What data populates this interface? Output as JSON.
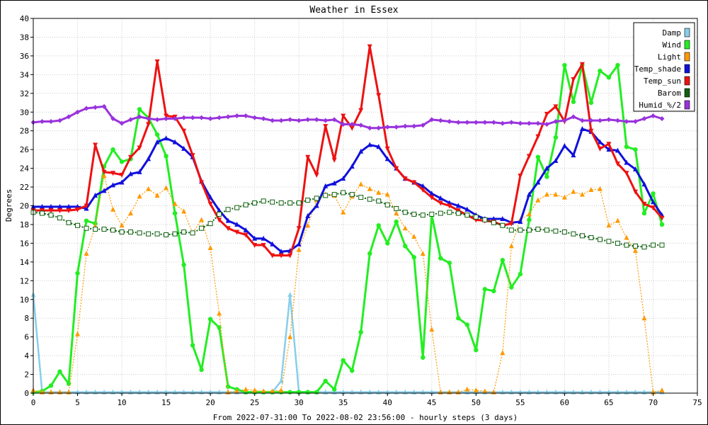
{
  "chart_data": {
    "type": "line",
    "title": "Weather in Essex",
    "xlabel": "From 2022-07-31:00 To 2022-08-02 23:56:00 - hourly steps (3 days)",
    "ylabel": "Degrees",
    "xlim": [
      0,
      75
    ],
    "ylim": [
      0,
      40
    ],
    "x_ticks": [
      0,
      5,
      10,
      15,
      20,
      25,
      30,
      35,
      40,
      45,
      50,
      55,
      60,
      65,
      70,
      75
    ],
    "y_ticks": [
      0,
      2,
      4,
      6,
      8,
      10,
      12,
      14,
      16,
      18,
      20,
      22,
      24,
      26,
      28,
      30,
      32,
      34,
      36,
      38,
      40
    ],
    "grid": true,
    "legend_position": "top-right",
    "series": [
      {
        "name": "Damp",
        "color": "#87ceeb",
        "marker": "triangle",
        "values": [
          10.5,
          0.1,
          0.1,
          0.1,
          0.1,
          0.1,
          0.1,
          0.1,
          0.1,
          0.1,
          0.1,
          0.1,
          0.1,
          0.1,
          0.1,
          0.1,
          0.1,
          0.1,
          0.1,
          0.1,
          0.1,
          0.1,
          0.1,
          0.1,
          0.1,
          0.1,
          0.1,
          0.1,
          1.3,
          10.5,
          0.1,
          0.1,
          0.1,
          0.1,
          0.1,
          0.1,
          0.1,
          0.1,
          0.1,
          0.1,
          0.1,
          0.1,
          0.1,
          0.1,
          0.1,
          0.1,
          0.1,
          0.1,
          0.1,
          0.1,
          0.1,
          0.1,
          0.1,
          0.1,
          0.1,
          0.1,
          0.1,
          0.1,
          0.1,
          0.1,
          0.1,
          0.1,
          0.1,
          0.1,
          0.1,
          0.1,
          0.1,
          0.1,
          0.1,
          0.1,
          0.1,
          0.1
        ]
      },
      {
        "name": "Wind",
        "color": "#22ee22",
        "marker": "circle",
        "values": [
          0.1,
          0.2,
          0.8,
          2.3,
          1.0,
          12.8,
          18.4,
          18.1,
          24.2,
          26.0,
          24.7,
          25.0,
          30.3,
          29.4,
          27.6,
          25.3,
          19.2,
          13.7,
          5.1,
          2.5,
          7.9,
          7.0,
          0.7,
          0.4,
          0.1,
          0.1,
          0.1,
          0.1,
          0.1,
          0.1,
          0.1,
          0.1,
          0.1,
          1.3,
          0.4,
          3.5,
          2.4,
          6.5,
          14.9,
          17.9,
          16.0,
          18.3,
          15.7,
          14.5,
          3.8,
          19.0,
          14.4,
          13.9,
          8.0,
          7.3,
          4.6,
          11.1,
          10.9,
          14.2,
          11.3,
          12.7,
          18.5,
          25.2,
          23.1,
          27.3,
          35.0,
          31.1,
          35.0,
          31.0,
          34.4,
          33.7,
          35.0,
          26.3,
          26.0,
          19.2,
          21.3,
          18.0
        ]
      },
      {
        "name": "Light",
        "color": "#ff9900",
        "marker": "triangle",
        "values": [
          0.3,
          0.1,
          0.1,
          0.1,
          0.1,
          6.3,
          14.9,
          17.8,
          23.2,
          19.6,
          17.9,
          19.2,
          21.0,
          21.8,
          21.1,
          21.9,
          20.2,
          19.4,
          17.1,
          18.5,
          15.5,
          8.5,
          0.1,
          0.2,
          0.4,
          0.3,
          0.2,
          0.2,
          0.3,
          6.0,
          15.3,
          17.9,
          20.6,
          21.2,
          21.1,
          19.3,
          21.0,
          22.3,
          21.8,
          21.4,
          21.2,
          19.2,
          17.6,
          16.7,
          14.9,
          6.8,
          0.1,
          0.1,
          0.1,
          0.4,
          0.3,
          0.2,
          0.1,
          4.3,
          15.7,
          18.5,
          19.1,
          20.6,
          21.2,
          21.2,
          20.9,
          21.5,
          21.2,
          21.7,
          21.8,
          17.9,
          18.4,
          16.6,
          15.2,
          8.0,
          0.1,
          0.3
        ]
      },
      {
        "name": "Temp_shade",
        "color": "#1010dd",
        "marker": "triangle",
        "values": [
          19.9,
          19.9,
          19.9,
          19.9,
          19.9,
          19.9,
          19.7,
          21.1,
          21.6,
          22.2,
          22.5,
          23.4,
          23.6,
          25.0,
          26.8,
          27.2,
          26.8,
          26.1,
          25.2,
          22.6,
          20.9,
          19.5,
          18.4,
          18.0,
          17.4,
          16.5,
          16.5,
          15.9,
          15.1,
          15.2,
          15.9,
          18.9,
          20.0,
          22.1,
          22.4,
          22.9,
          24.2,
          25.8,
          26.5,
          26.3,
          25.0,
          24.0,
          22.9,
          22.5,
          22.1,
          21.3,
          20.8,
          20.3,
          20.0,
          19.6,
          19.0,
          18.6,
          18.6,
          18.6,
          18.2,
          18.3,
          21.2,
          22.5,
          24.0,
          24.8,
          26.4,
          25.4,
          28.2,
          27.9,
          26.8,
          26.0,
          25.9,
          24.6,
          23.9,
          22.3,
          20.4,
          19.0
        ]
      },
      {
        "name": "Temp_sun",
        "color": "#ee1111",
        "marker": "triangle-down",
        "values": [
          19.5,
          19.5,
          19.5,
          19.5,
          19.5,
          19.6,
          20.0,
          26.5,
          23.6,
          23.5,
          23.3,
          25.2,
          26.2,
          28.7,
          35.4,
          29.6,
          29.5,
          28.0,
          25.4,
          22.5,
          20.2,
          18.5,
          17.6,
          17.2,
          16.9,
          15.8,
          15.8,
          14.7,
          14.7,
          14.7,
          17.6,
          25.2,
          23.3,
          28.5,
          24.9,
          29.6,
          28.3,
          30.2,
          37.0,
          31.8,
          26.1,
          24.0,
          22.9,
          22.5,
          21.7,
          20.9,
          20.3,
          20.0,
          19.5,
          19.0,
          18.5,
          18.4,
          18.3,
          17.9,
          18.1,
          23.2,
          25.3,
          27.4,
          29.8,
          30.6,
          29.0,
          33.5,
          35.1,
          28.0,
          26.1,
          26.6,
          24.5,
          23.5,
          21.5,
          20.2,
          19.8,
          18.7
        ]
      },
      {
        "name": "Barom",
        "color": "#0f600f",
        "marker": "square",
        "values": [
          19.3,
          19.2,
          19.0,
          18.7,
          18.2,
          17.9,
          17.6,
          17.5,
          17.5,
          17.4,
          17.2,
          17.2,
          17.1,
          17.0,
          17.0,
          16.9,
          17.0,
          17.2,
          17.1,
          17.6,
          18.1,
          19.1,
          19.6,
          19.8,
          20.1,
          20.3,
          20.5,
          20.4,
          20.3,
          20.3,
          20.3,
          20.6,
          20.8,
          21.1,
          21.2,
          21.4,
          21.2,
          20.9,
          20.7,
          20.5,
          20.1,
          19.7,
          19.3,
          19.1,
          19.0,
          19.1,
          19.2,
          19.3,
          19.2,
          19.0,
          18.8,
          18.5,
          18.2,
          17.9,
          17.4,
          17.4,
          17.4,
          17.5,
          17.4,
          17.3,
          17.2,
          17.0,
          16.8,
          16.6,
          16.4,
          16.2,
          16.0,
          15.8,
          15.7,
          15.6,
          15.8,
          15.8
        ]
      },
      {
        "name": "Humid_%/2",
        "color": "#9933dd",
        "marker": "diamond",
        "values": [
          28.9,
          29.0,
          29.0,
          29.1,
          29.5,
          30.0,
          30.4,
          30.5,
          30.6,
          29.3,
          28.8,
          29.2,
          29.5,
          29.3,
          29.2,
          29.3,
          29.3,
          29.4,
          29.4,
          29.4,
          29.3,
          29.4,
          29.5,
          29.6,
          29.6,
          29.4,
          29.3,
          29.1,
          29.1,
          29.2,
          29.1,
          29.2,
          29.2,
          29.1,
          29.2,
          28.7,
          28.7,
          28.6,
          28.3,
          28.3,
          28.4,
          28.4,
          28.5,
          28.5,
          28.6,
          29.2,
          29.1,
          29.0,
          28.9,
          28.9,
          28.9,
          28.9,
          28.9,
          28.8,
          28.9,
          28.8,
          28.8,
          28.8,
          28.7,
          29.0,
          29.1,
          29.5,
          29.1,
          29.1,
          29.1,
          29.2,
          29.1,
          29.0,
          29.0,
          29.3,
          29.6,
          29.3
        ]
      }
    ]
  }
}
